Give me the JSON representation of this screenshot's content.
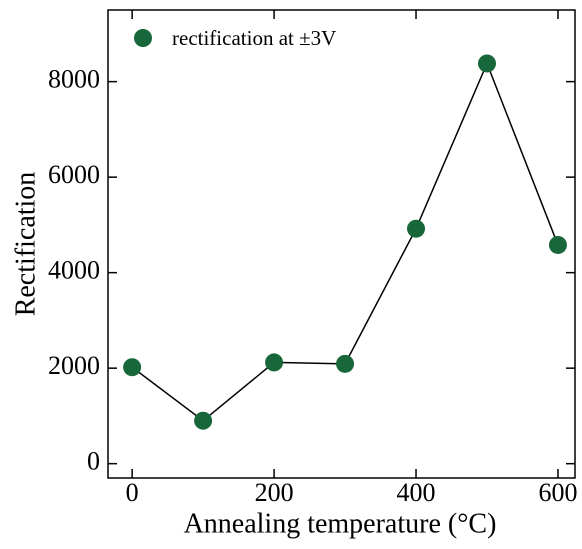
{
  "chart_data": {
    "type": "line",
    "x_label": "Annealing temperature  (°C)",
    "y_label": "Rectification",
    "x": [
      0,
      100,
      200,
      300,
      400,
      500,
      600
    ],
    "series": [
      {
        "name": "rectification at ±3V",
        "color": "#17673a",
        "values": [
          2020,
          900,
          2120,
          2090,
          4920,
          8380,
          4580
        ]
      }
    ],
    "xlim": [
      -34,
      624
    ],
    "ylim": [
      -300,
      9500
    ],
    "xticks": [
      0,
      200,
      400,
      600
    ],
    "yticks": [
      0,
      2000,
      4000,
      6000,
      8000
    ],
    "legend": "upper left"
  }
}
